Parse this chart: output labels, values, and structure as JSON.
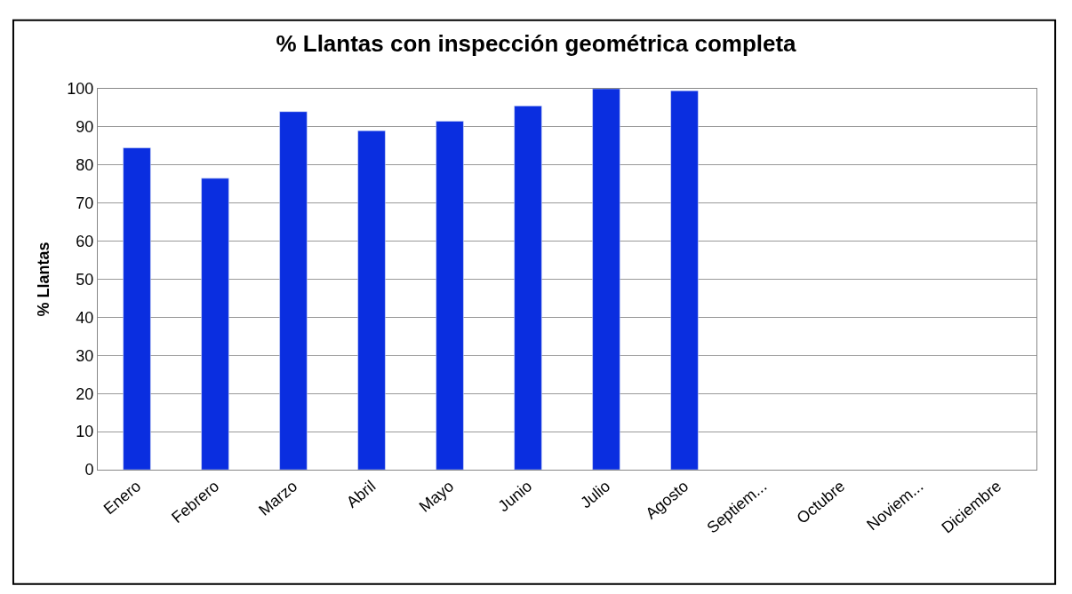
{
  "chart_data": {
    "type": "bar",
    "title": "% Llantas con inspección geométrica completa",
    "ylabel": "% Llantas",
    "categories": [
      "Enero",
      "Febrero",
      "Marzo",
      "Abril",
      "Mayo",
      "Junio",
      "Julio",
      "Agosto",
      "Septiem...",
      "Octubre",
      "Noviem...",
      "Diciembre"
    ],
    "values": [
      84.5,
      76.5,
      94,
      89,
      91.5,
      95.5,
      100,
      99.5,
      null,
      null,
      null,
      null
    ],
    "color": "#0a2ee0",
    "ylim": [
      0,
      100
    ],
    "yticks": [
      0,
      10,
      20,
      30,
      40,
      50,
      60,
      70,
      80,
      90,
      100
    ],
    "grid": "y"
  }
}
